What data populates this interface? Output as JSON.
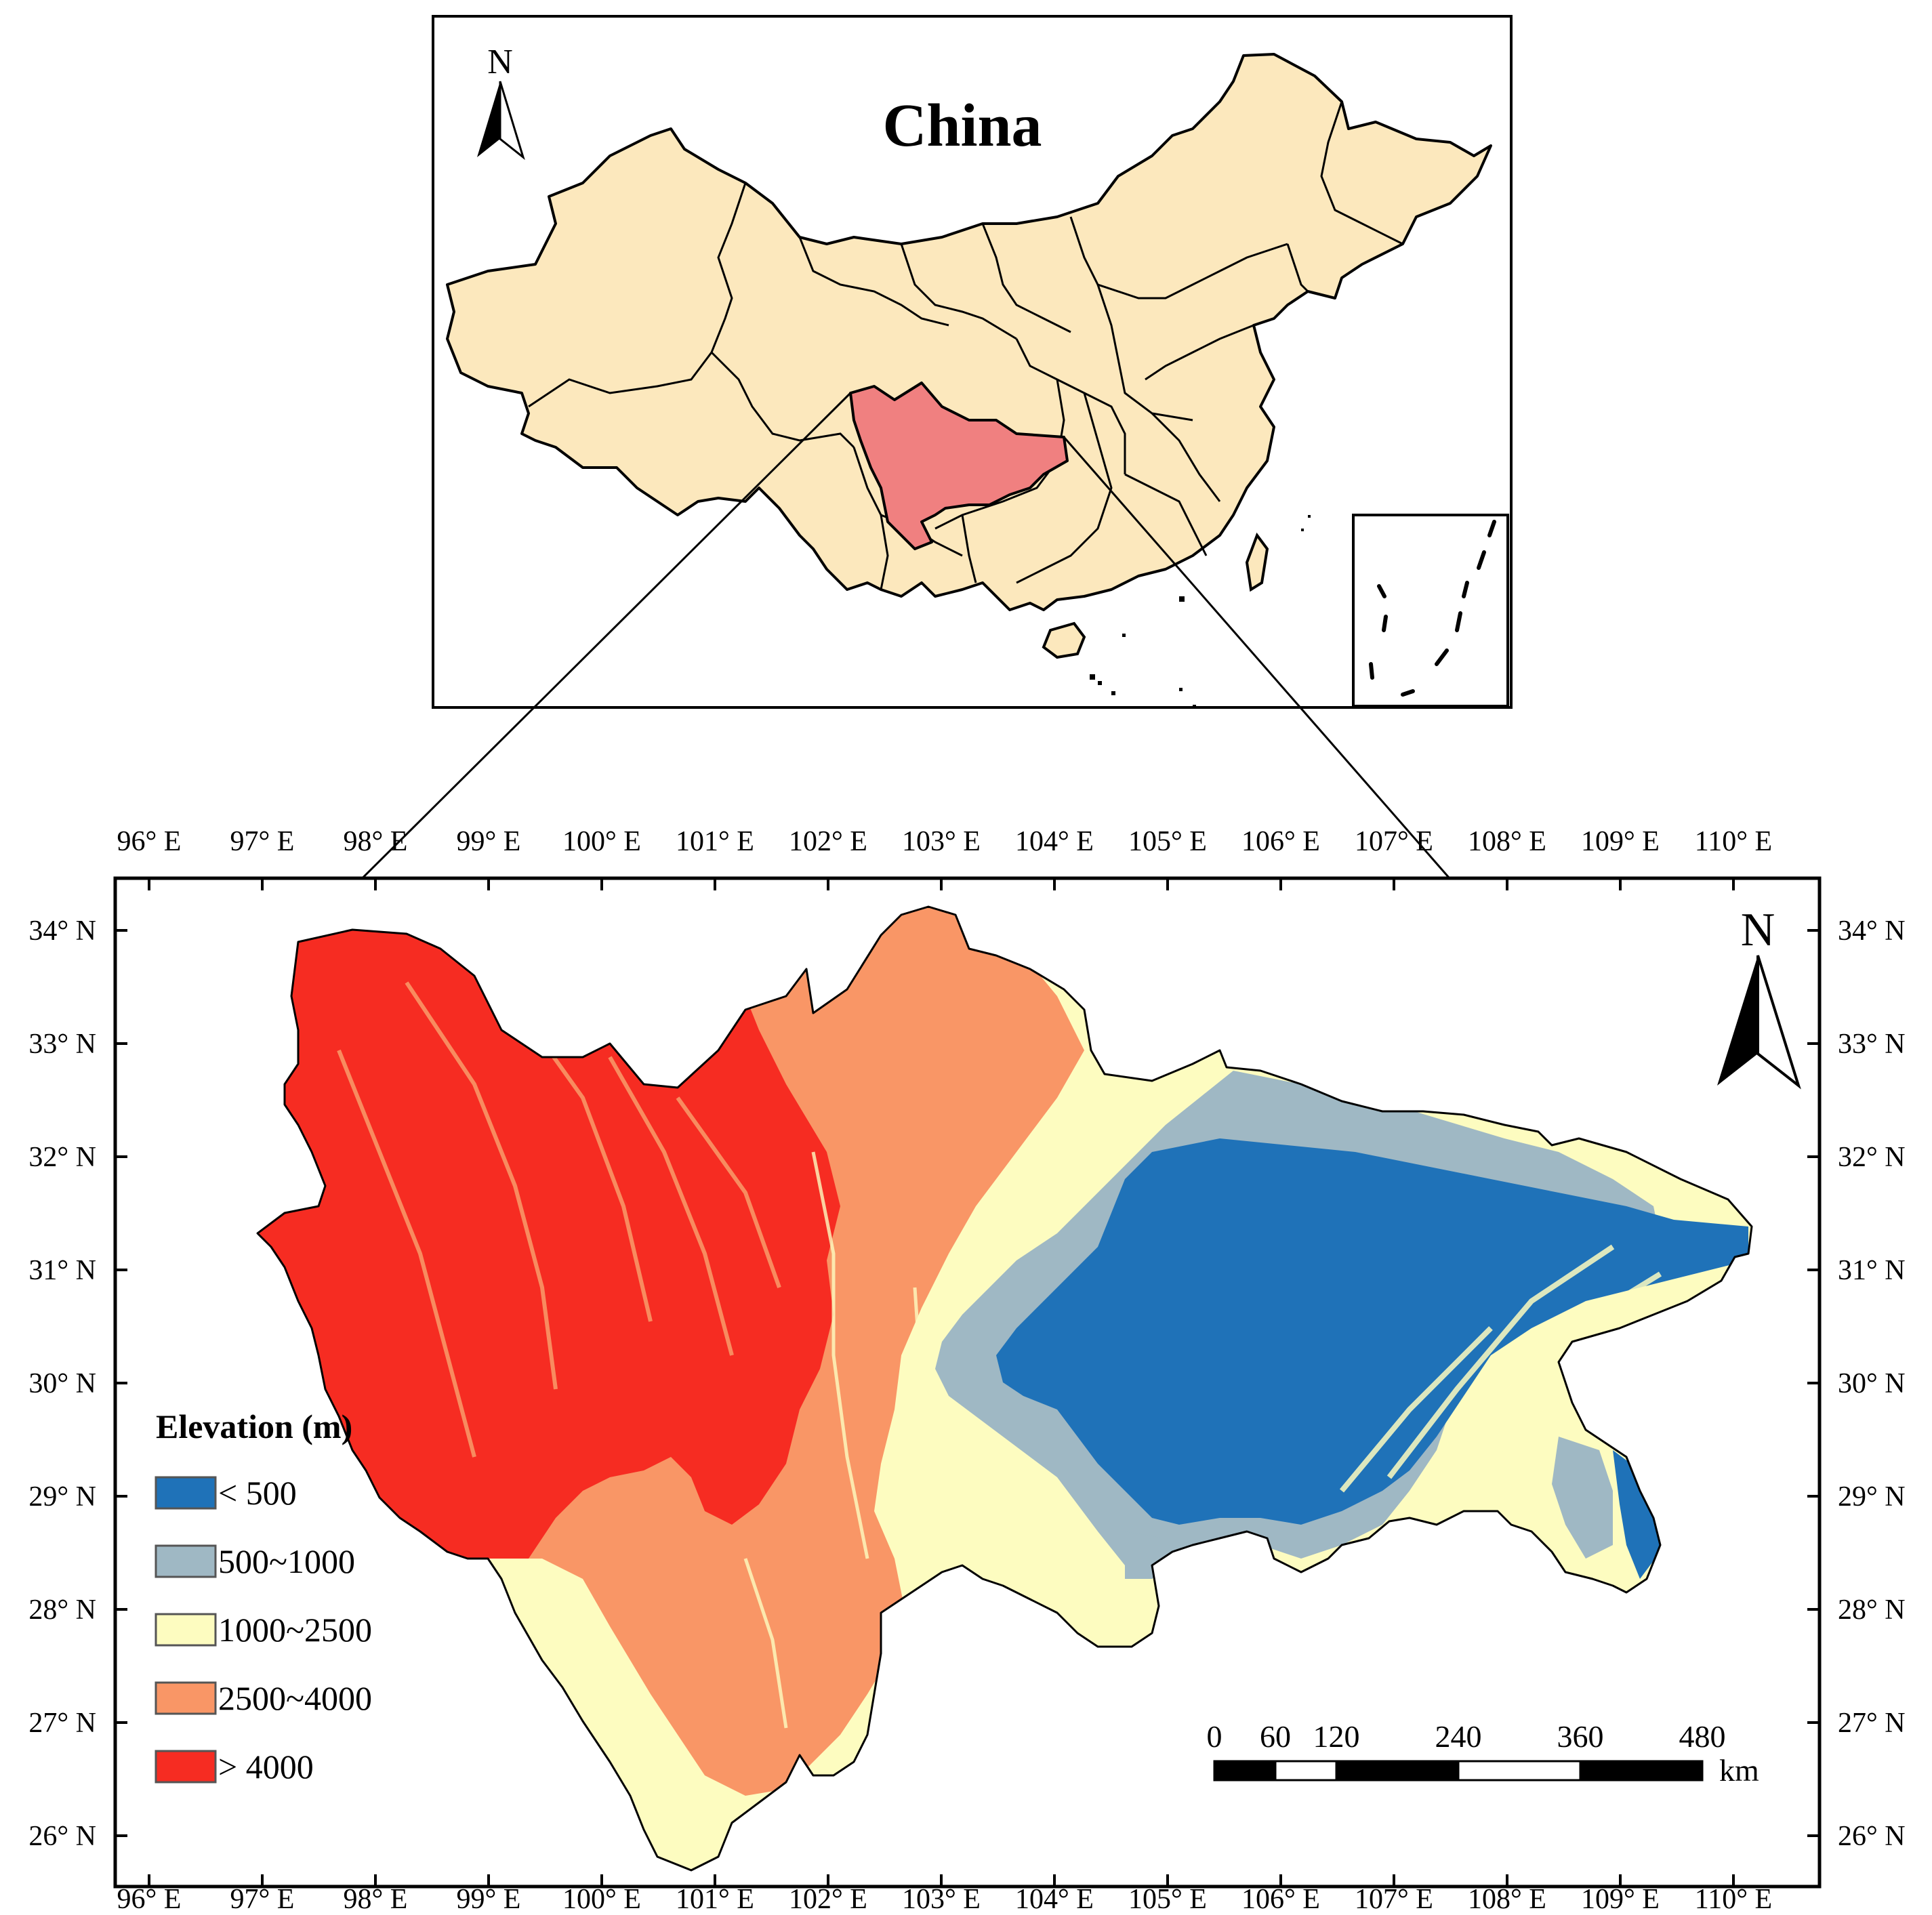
{
  "inset": {
    "title": "China",
    "north_label": "N",
    "colors": {
      "land": "#fce8bd",
      "highlight": "#f08080",
      "border": "#000000"
    }
  },
  "main_map": {
    "north_label": "N",
    "top_lon_labels": [
      "96° E",
      "97° E",
      "98° E",
      "99° E",
      "100° E",
      "101° E",
      "102° E",
      "103° E",
      "104° E",
      "105° E",
      "106° E",
      "107° E",
      "108° E",
      "109° E",
      "110° E"
    ],
    "bottom_lon_labels": [
      "96° E",
      "97° E",
      "98° E",
      "99° E",
      "100° E",
      "101° E",
      "102° E",
      "103° E",
      "104° E",
      "105° E",
      "106° E",
      "107° E",
      "108° E",
      "109° E",
      "110° E"
    ],
    "left_lat_labels": [
      "34° N",
      "33° N",
      "32° N",
      "31° N",
      "30° N",
      "29° N",
      "28° N",
      "27° N",
      "26° N"
    ],
    "right_lat_labels": [
      "34° N",
      "33° N",
      "32° N",
      "31° N",
      "30° N",
      "29° N",
      "28° N",
      "27° N",
      "26° N"
    ],
    "legend": {
      "title": "Elevation (m)",
      "items": [
        {
          "label": "< 500",
          "color": "#1f72b8"
        },
        {
          "label": "500~1000",
          "color": "#9fb8c4"
        },
        {
          "label": "1000~2500",
          "color": "#fdfcc0"
        },
        {
          "label": "2500~4000",
          "color": "#f99666"
        },
        {
          "label": "> 4000",
          "color": "#f62c22"
        }
      ]
    },
    "scale_bar": {
      "ticks": [
        "0",
        "60",
        "120",
        "240",
        "360",
        "480"
      ],
      "unit": "km"
    }
  }
}
